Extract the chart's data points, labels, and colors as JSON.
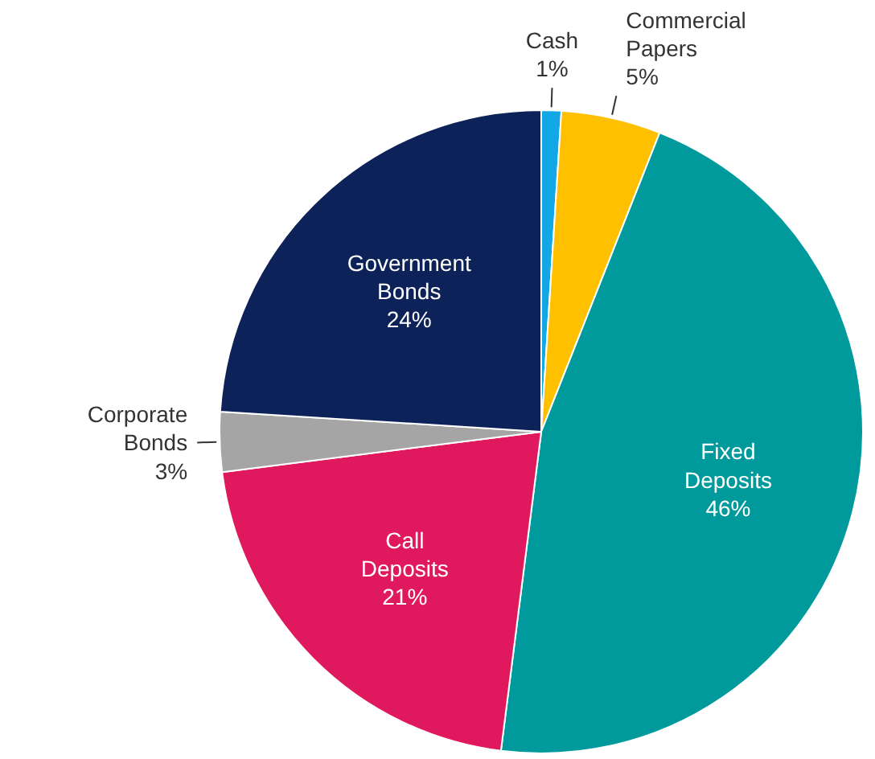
{
  "chart_data": {
    "type": "pie",
    "categories": [
      "Cash",
      "Commercial Papers",
      "Fixed Deposits",
      "Call Deposits",
      "Corporate Bonds",
      "Government Bonds"
    ],
    "values": [
      1,
      5,
      46,
      21,
      3,
      24
    ],
    "colors": [
      "#13a7e6",
      "#ffc000",
      "#00999c",
      "#e0195f",
      "#a5a5a5",
      "#0c2259"
    ],
    "value_labels": [
      "1%",
      "5%",
      "46%",
      "21%",
      "3%",
      "24%"
    ]
  }
}
